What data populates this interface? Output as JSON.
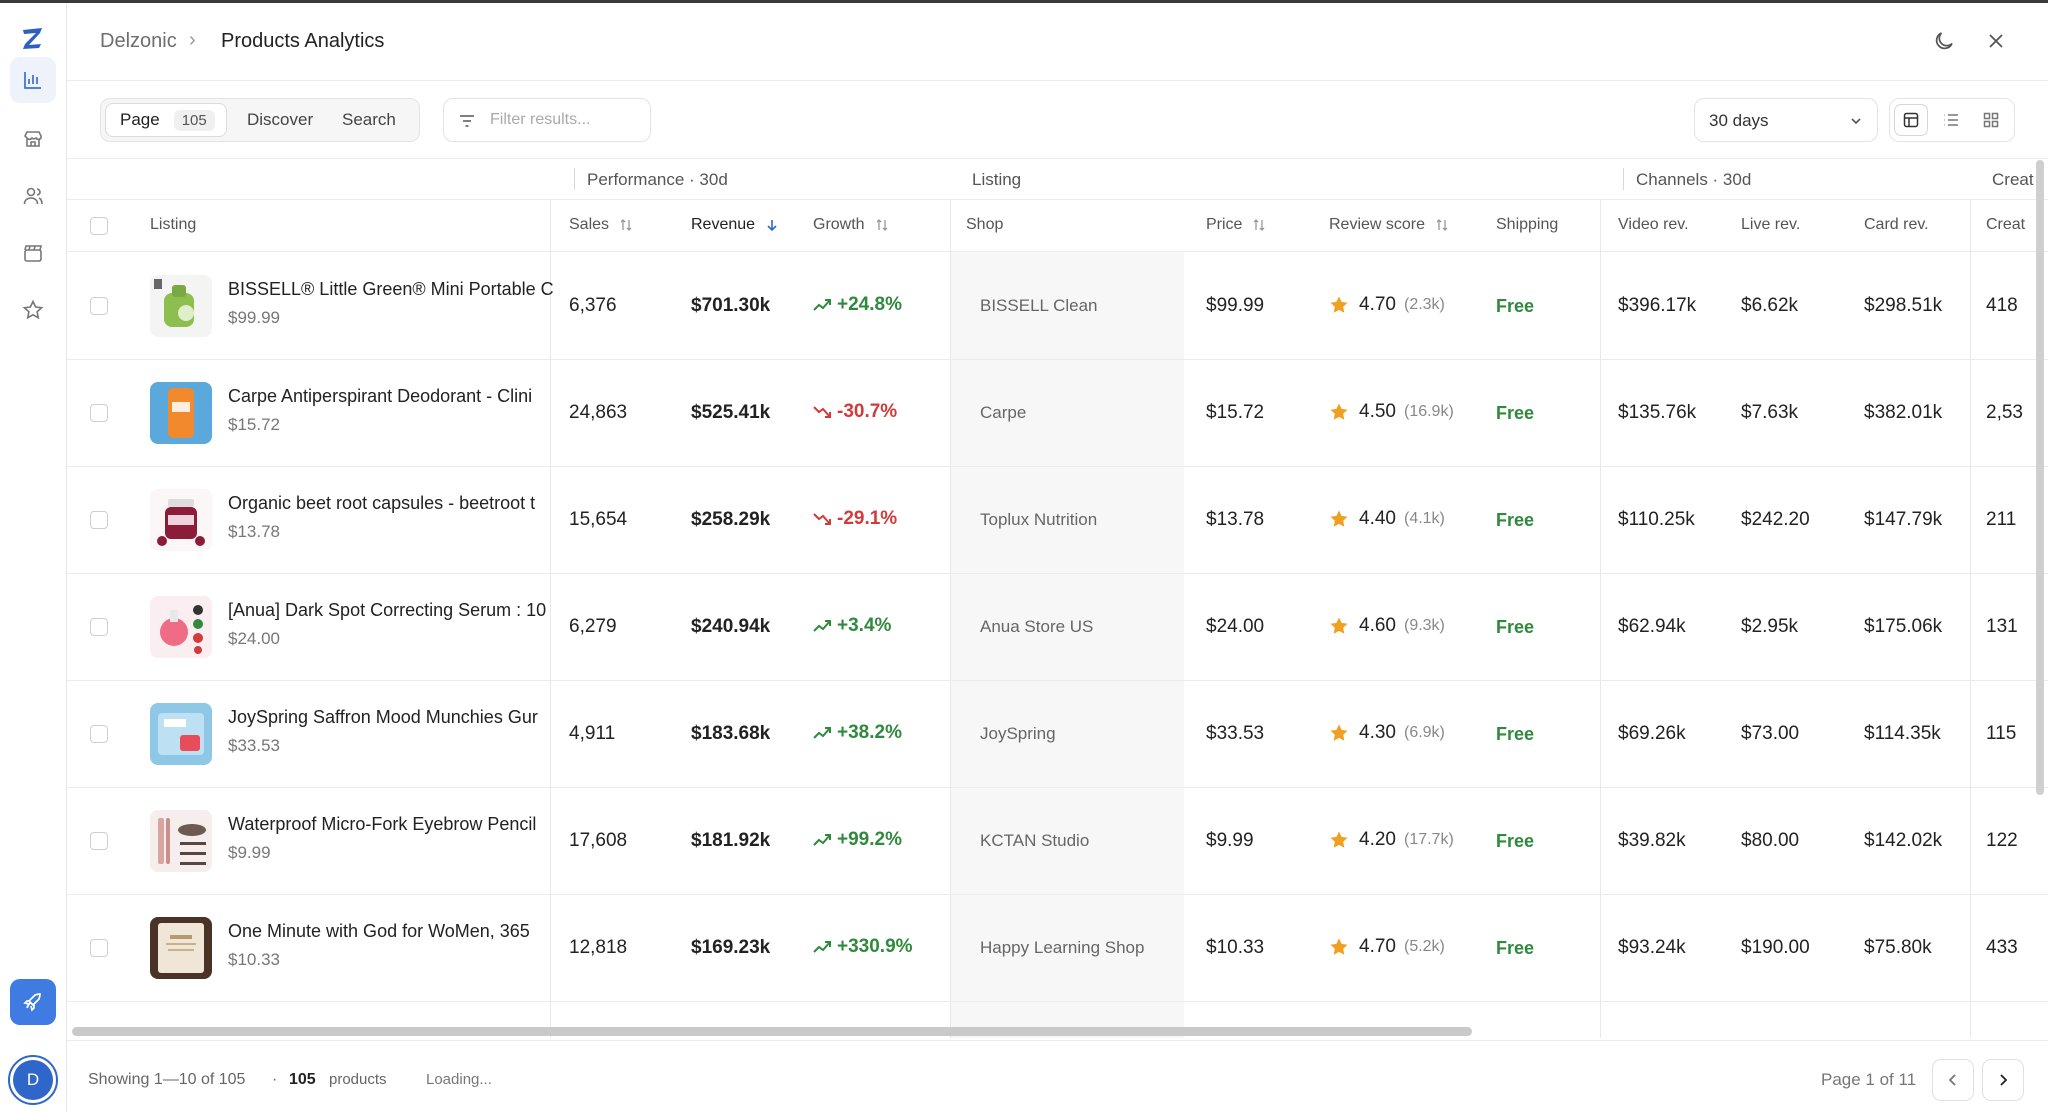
{
  "app": {
    "avatar_letter": "D"
  },
  "header": {
    "breadcrumb_root": "Delzonic",
    "breadcrumb_sep": "›",
    "title": "Products Analytics"
  },
  "toolbar": {
    "tabs": [
      {
        "label": "Page",
        "badge": "105"
      },
      {
        "label": "Discover"
      },
      {
        "label": "Search"
      }
    ],
    "filter_placeholder": "Filter results...",
    "range": "30 days"
  },
  "groups": {
    "performance": "Performance · 30d",
    "listing": "Listing",
    "channels": "Channels · 30d",
    "creators": "Creat"
  },
  "columns": {
    "listing": "Listing",
    "sales": "Sales",
    "revenue": "Revenue",
    "growth": "Growth",
    "shop": "Shop",
    "price": "Price",
    "review": "Review score",
    "shipping": "Shipping",
    "video": "Video rev.",
    "live": "Live rev.",
    "card": "Card rev.",
    "creators": "Creat"
  },
  "rows": [
    {
      "title": "BISSELL® Little Green® Mini Portable C",
      "price": "$99.99",
      "sales": "6,376",
      "revenue": "$701.30k",
      "growth": "+24.8%",
      "trend": "up",
      "shop": "BISSELL Clean",
      "price2": "$99.99",
      "score": "4.70",
      "reviews": "(2.3k)",
      "shipping": "Free",
      "video": "$396.17k",
      "live": "$6.62k",
      "card": "$298.51k",
      "creators": "418"
    },
    {
      "title": "Carpe Antiperspirant Deodorant - Clini",
      "price": "$15.72",
      "sales": "24,863",
      "revenue": "$525.41k",
      "growth": "-30.7%",
      "trend": "down",
      "shop": "Carpe",
      "price2": "$15.72",
      "score": "4.50",
      "reviews": "(16.9k)",
      "shipping": "Free",
      "video": "$135.76k",
      "live": "$7.63k",
      "card": "$382.01k",
      "creators": "2,53"
    },
    {
      "title": "Organic beet root capsules - beetroot t",
      "price": "$13.78",
      "sales": "15,654",
      "revenue": "$258.29k",
      "growth": "-29.1%",
      "trend": "down",
      "shop": "Toplux Nutrition",
      "price2": "$13.78",
      "score": "4.40",
      "reviews": "(4.1k)",
      "shipping": "Free",
      "video": "$110.25k",
      "live": "$242.20",
      "card": "$147.79k",
      "creators": "211"
    },
    {
      "title": "[Anua] Dark Spot Correcting Serum : 10",
      "price": "$24.00",
      "sales": "6,279",
      "revenue": "$240.94k",
      "growth": "+3.4%",
      "trend": "up",
      "shop": "Anua Store US",
      "price2": "$24.00",
      "score": "4.60",
      "reviews": "(9.3k)",
      "shipping": "Free",
      "video": "$62.94k",
      "live": "$2.95k",
      "card": "$175.06k",
      "creators": "131"
    },
    {
      "title": "JoySpring Saffron Mood Munchies Gur",
      "price": "$33.53",
      "sales": "4,911",
      "revenue": "$183.68k",
      "growth": "+38.2%",
      "trend": "up",
      "shop": "JoySpring",
      "price2": "$33.53",
      "score": "4.30",
      "reviews": "(6.9k)",
      "shipping": "Free",
      "video": "$69.26k",
      "live": "$73.00",
      "card": "$114.35k",
      "creators": "115"
    },
    {
      "title": "Waterproof Micro-Fork Eyebrow Pencil",
      "price": "$9.99",
      "sales": "17,608",
      "revenue": "$181.92k",
      "growth": "+99.2%",
      "trend": "up",
      "shop": "KCTAN Studio",
      "price2": "$9.99",
      "score": "4.20",
      "reviews": "(17.7k)",
      "shipping": "Free",
      "video": "$39.82k",
      "live": "$80.00",
      "card": "$142.02k",
      "creators": "122"
    },
    {
      "title": "One Minute with God for WoMen, 365",
      "price": "$10.33",
      "sales": "12,818",
      "revenue": "$169.23k",
      "growth": "+330.9%",
      "trend": "up",
      "shop": "Happy Learning Shop",
      "price2": "$10.33",
      "score": "4.70",
      "reviews": "(5.2k)",
      "shipping": "Free",
      "video": "$93.24k",
      "live": "$190.00",
      "card": "$75.80k",
      "creators": "433"
    }
  ],
  "footer": {
    "showing": "Showing 1—10 of 105",
    "dot": "·",
    "count": "105",
    "count_label": "products",
    "loading": "Loading...",
    "page": "Page 1 of 11"
  },
  "colors": {
    "accent": "#3f7be0",
    "up": "#2f8a3d",
    "down": "#d23b3b",
    "star": "#f0a020"
  }
}
